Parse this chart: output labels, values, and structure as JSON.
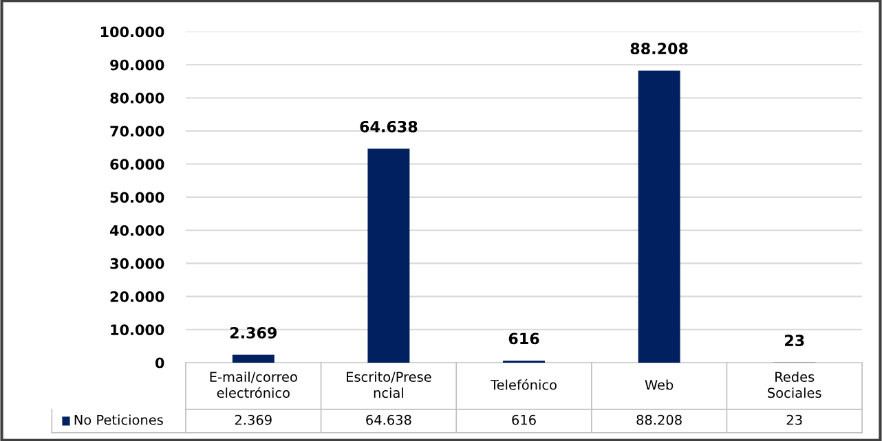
{
  "chart_data": {
    "type": "bar",
    "categories": [
      "E-mail/correo electrónico",
      "Escrito/Presencial",
      "Telefónico",
      "Web",
      "Redes Sociales"
    ],
    "series": [
      {
        "name": "No Peticiones",
        "color": "#002060",
        "values": [
          2369,
          64638,
          616,
          88208,
          23
        ],
        "value_labels": [
          "2.369",
          "64.638",
          "616",
          "88.208",
          "23"
        ]
      }
    ],
    "ylim": [
      0,
      100000
    ],
    "yticks": [
      {
        "value": 0,
        "label": "0"
      },
      {
        "value": 10000,
        "label": "10.000"
      },
      {
        "value": 20000,
        "label": "20.000"
      },
      {
        "value": 30000,
        "label": "30.000"
      },
      {
        "value": 40000,
        "label": "40.000"
      },
      {
        "value": 50000,
        "label": "50.000"
      },
      {
        "value": 60000,
        "label": "60.000"
      },
      {
        "value": 70000,
        "label": "70.000"
      },
      {
        "value": 80000,
        "label": "80.000"
      },
      {
        "value": 90000,
        "label": "90.000"
      },
      {
        "value": 100000,
        "label": "100.000"
      }
    ],
    "grid": "y",
    "legend": "bottom"
  }
}
